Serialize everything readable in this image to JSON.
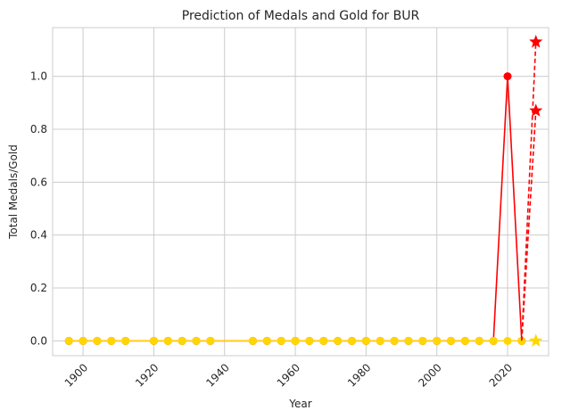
{
  "chart_data": {
    "type": "line",
    "title": "Prediction of Medals and Gold for BUR",
    "xlabel": "Year",
    "ylabel": "Total Medals/Gold",
    "xlim": [
      1891.4,
      2031.6
    ],
    "ylim": [
      -0.056,
      1.184
    ],
    "xticks": [
      1900,
      1920,
      1940,
      1960,
      1980,
      2000,
      2020
    ],
    "yticks": [
      0.0,
      0.2,
      0.4,
      0.6,
      0.8,
      1.0
    ],
    "grid": true,
    "legend": "none",
    "series": [
      {
        "color": "#ff0000",
        "marker": "circle",
        "style": "solid",
        "points": [
          [
            1896,
            0
          ],
          [
            1900,
            0
          ],
          [
            1904,
            0
          ],
          [
            1908,
            0
          ],
          [
            1912,
            0
          ],
          [
            1920,
            0
          ],
          [
            1924,
            0
          ],
          [
            1928,
            0
          ],
          [
            1932,
            0
          ],
          [
            1936,
            0
          ],
          [
            1948,
            0
          ],
          [
            1952,
            0
          ],
          [
            1956,
            0
          ],
          [
            1960,
            0
          ],
          [
            1964,
            0
          ],
          [
            1968,
            0
          ],
          [
            1972,
            0
          ],
          [
            1976,
            0
          ],
          [
            1980,
            0
          ],
          [
            1984,
            0
          ],
          [
            1988,
            0
          ],
          [
            1992,
            0
          ],
          [
            1996,
            0
          ],
          [
            2000,
            0
          ],
          [
            2004,
            0
          ],
          [
            2008,
            0
          ],
          [
            2012,
            0
          ],
          [
            2016,
            0
          ],
          [
            2020,
            1.0
          ],
          [
            2024,
            0
          ]
        ]
      },
      {
        "color": "#ffd700",
        "marker": "circle",
        "style": "solid",
        "points": [
          [
            1896,
            0
          ],
          [
            1900,
            0
          ],
          [
            1904,
            0
          ],
          [
            1908,
            0
          ],
          [
            1912,
            0
          ],
          [
            1920,
            0
          ],
          [
            1924,
            0
          ],
          [
            1928,
            0
          ],
          [
            1932,
            0
          ],
          [
            1936,
            0
          ],
          [
            1948,
            0
          ],
          [
            1952,
            0
          ],
          [
            1956,
            0
          ],
          [
            1960,
            0
          ],
          [
            1964,
            0
          ],
          [
            1968,
            0
          ],
          [
            1972,
            0
          ],
          [
            1976,
            0
          ],
          [
            1980,
            0
          ],
          [
            1984,
            0
          ],
          [
            1988,
            0
          ],
          [
            1992,
            0
          ],
          [
            1996,
            0
          ],
          [
            2000,
            0
          ],
          [
            2004,
            0
          ],
          [
            2008,
            0
          ],
          [
            2012,
            0
          ],
          [
            2016,
            0
          ],
          [
            2020,
            0
          ],
          [
            2024,
            0
          ]
        ]
      },
      {
        "color": "#ff0000",
        "marker": "star",
        "style": "dashed",
        "points": [
          [
            2024,
            0
          ],
          [
            2028,
            1.13
          ]
        ]
      },
      {
        "color": "#ff0000",
        "marker": "star",
        "style": "dashed",
        "points": [
          [
            2024,
            0
          ],
          [
            2028,
            0.87
          ]
        ]
      },
      {
        "color": "#ffd700",
        "marker": "star",
        "style": "dashed",
        "points": [
          [
            2024,
            0
          ],
          [
            2028,
            0
          ]
        ]
      }
    ]
  }
}
